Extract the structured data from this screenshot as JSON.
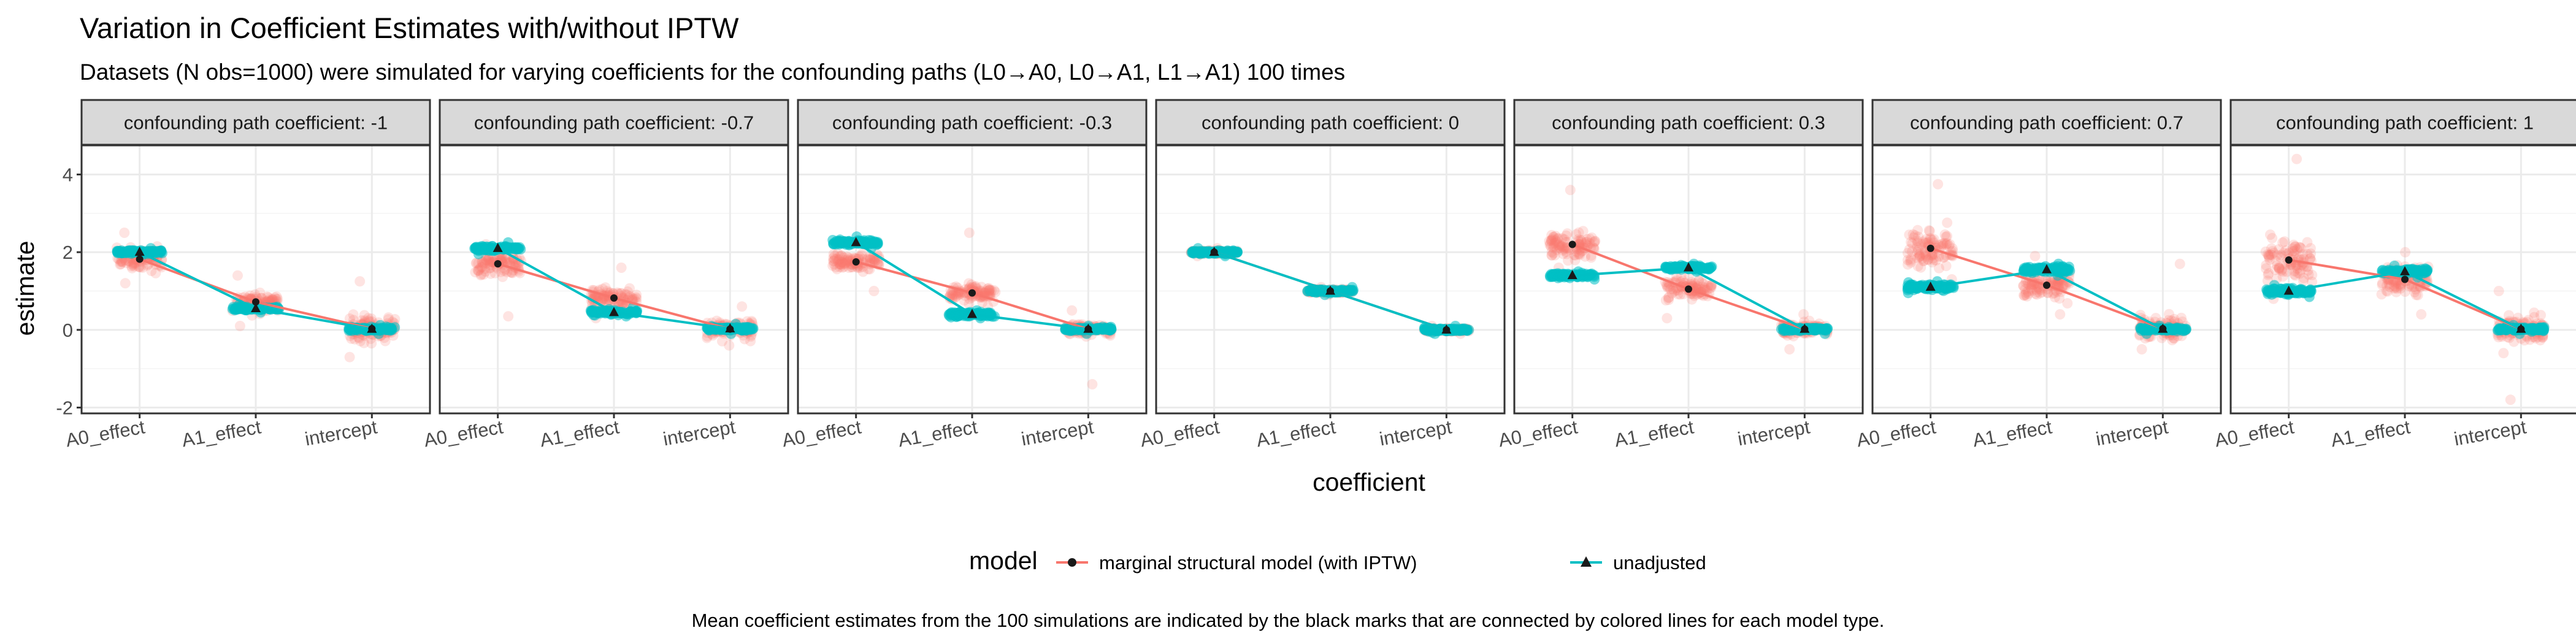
{
  "chart_data": {
    "type": "scatter",
    "title": "Variation in Coefficient Estimates with/without IPTW",
    "subtitle": "Datasets (N obs=1000) were simulated for varying coefficients for the confounding paths (L0→A0, L0→A1, L1→A1) 100 times",
    "xlabel": "coefficient",
    "ylabel": "estimate",
    "caption": "Mean coefficient estimates from the 100 simulations are indicated by the black marks that are connected by colored lines for each model type.",
    "categories": [
      "A0_effect",
      "A1_effect",
      "intercept"
    ],
    "ylim": [
      -2.15,
      4.75
    ],
    "yticks": [
      -2,
      0,
      2,
      4
    ],
    "grid": true,
    "legend": {
      "title": "model",
      "position": "bottom",
      "entries": [
        {
          "label": "marginal structural model (with IPTW)",
          "color": "#F8766D",
          "shape": "circle"
        },
        {
          "label": "unadjusted",
          "color": "#00BFC4",
          "shape": "triangle"
        }
      ]
    },
    "panels": [
      {
        "label": "confounding path coefficient: -1",
        "series": [
          {
            "name": "marginal structural model (with IPTW)",
            "means": [
              1.82,
              0.72,
              0.03
            ],
            "spread_sd": [
              0.2,
              0.17,
              0.24
            ],
            "spread_range": [
              [
                1.2,
                2.5
              ],
              [
                0.1,
                1.4
              ],
              [
                -0.7,
                1.25
              ]
            ]
          },
          {
            "name": "unadjusted",
            "means": [
              2.0,
              0.55,
              0.02
            ],
            "spread_sd": [
              0.03,
              0.03,
              0.03
            ],
            "spread_range": [
              [
                1.9,
                2.1
              ],
              [
                0.45,
                0.65
              ],
              [
                -0.1,
                0.12
              ]
            ]
          }
        ]
      },
      {
        "label": "confounding path coefficient: -0.7",
        "series": [
          {
            "name": "marginal structural model (with IPTW)",
            "means": [
              1.7,
              0.82,
              0.02
            ],
            "spread_sd": [
              0.22,
              0.2,
              0.15
            ],
            "spread_range": [
              [
                0.35,
                2.2
              ],
              [
                0.3,
                1.6
              ],
              [
                -0.4,
                0.6
              ]
            ]
          },
          {
            "name": "unadjusted",
            "means": [
              2.1,
              0.45,
              0.03
            ],
            "spread_sd": [
              0.04,
              0.04,
              0.03
            ],
            "spread_range": [
              [
                1.95,
                2.25
              ],
              [
                0.35,
                0.58
              ],
              [
                -0.1,
                0.15
              ]
            ]
          }
        ]
      },
      {
        "label": "confounding path coefficient: -0.3",
        "series": [
          {
            "name": "marginal structural model (with IPTW)",
            "means": [
              1.75,
              0.95,
              0.02
            ],
            "spread_sd": [
              0.15,
              0.15,
              0.1
            ],
            "spread_range": [
              [
                1.0,
                2.2
              ],
              [
                0.6,
                2.5
              ],
              [
                -1.4,
                0.5
              ]
            ]
          },
          {
            "name": "unadjusted",
            "means": [
              2.25,
              0.4,
              0.02
            ],
            "spread_sd": [
              0.04,
              0.04,
              0.03
            ],
            "spread_range": [
              [
                2.1,
                2.4
              ],
              [
                0.3,
                0.5
              ],
              [
                -0.1,
                0.1
              ]
            ]
          }
        ]
      },
      {
        "label": "confounding path coefficient: 0",
        "series": [
          {
            "name": "marginal structural model (with IPTW)",
            "means": [
              2.0,
              1.0,
              0.0
            ],
            "spread_sd": [
              0.03,
              0.03,
              0.03
            ],
            "spread_range": [
              [
                1.9,
                2.1
              ],
              [
                0.9,
                1.1
              ],
              [
                -0.1,
                0.1
              ]
            ]
          },
          {
            "name": "unadjusted",
            "means": [
              2.0,
              1.0,
              0.0
            ],
            "spread_sd": [
              0.03,
              0.03,
              0.03
            ],
            "spread_range": [
              [
                1.9,
                2.1
              ],
              [
                0.9,
                1.1
              ],
              [
                -0.1,
                0.1
              ]
            ]
          }
        ]
      },
      {
        "label": "confounding path coefficient: 0.3",
        "series": [
          {
            "name": "marginal structural model (with IPTW)",
            "means": [
              2.2,
              1.05,
              0.02
            ],
            "spread_sd": [
              0.22,
              0.18,
              0.1
            ],
            "spread_range": [
              [
                1.6,
                3.6
              ],
              [
                0.3,
                1.6
              ],
              [
                -0.5,
                0.4
              ]
            ]
          },
          {
            "name": "unadjusted",
            "means": [
              1.4,
              1.6,
              0.02
            ],
            "spread_sd": [
              0.04,
              0.04,
              0.03
            ],
            "spread_range": [
              [
                1.3,
                1.5
              ],
              [
                1.5,
                1.7
              ],
              [
                -0.1,
                0.1
              ]
            ]
          }
        ]
      },
      {
        "label": "confounding path coefficient: 0.7",
        "series": [
          {
            "name": "marginal structural model (with IPTW)",
            "means": [
              2.1,
              1.15,
              0.03
            ],
            "spread_sd": [
              0.35,
              0.22,
              0.2
            ],
            "spread_range": [
              [
                1.3,
                3.75
              ],
              [
                0.4,
                1.9
              ],
              [
                -0.5,
                1.7
              ]
            ]
          },
          {
            "name": "unadjusted",
            "means": [
              1.1,
              1.55,
              0.02
            ],
            "spread_sd": [
              0.05,
              0.05,
              0.03
            ],
            "spread_range": [
              [
                0.95,
                1.25
              ],
              [
                1.4,
                1.7
              ],
              [
                -0.1,
                0.1
              ]
            ]
          }
        ]
      },
      {
        "label": "confounding path coefficient: 1",
        "series": [
          {
            "name": "marginal structural model (with IPTW)",
            "means": [
              1.8,
              1.3,
              0.02
            ],
            "spread_sd": [
              0.4,
              0.25,
              0.28
            ],
            "spread_range": [
              [
                0.8,
                4.4
              ],
              [
                0.4,
                2.0
              ],
              [
                -1.8,
                1.0
              ]
            ]
          },
          {
            "name": "unadjusted",
            "means": [
              1.0,
              1.5,
              0.02
            ],
            "spread_sd": [
              0.05,
              0.05,
              0.03
            ],
            "spread_range": [
              [
                0.85,
                1.15
              ],
              [
                1.35,
                1.65
              ],
              [
                -0.1,
                0.12
              ]
            ]
          }
        ]
      }
    ]
  }
}
